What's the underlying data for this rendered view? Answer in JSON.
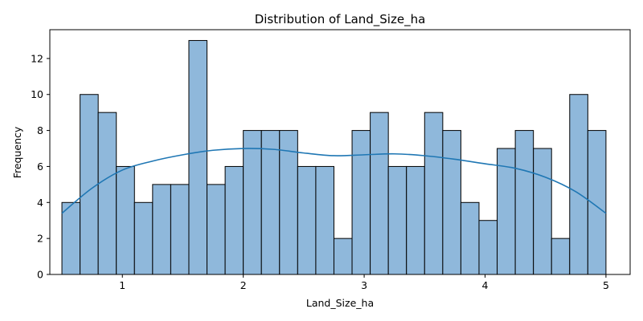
{
  "chart_data": {
    "type": "bar",
    "title": "Distribution of Land_Size_ha",
    "xlabel": "Land_Size_ha",
    "ylabel": "Frequency",
    "xlim": [
      0.4,
      5.2
    ],
    "ylim": [
      0,
      13.6
    ],
    "bin_start": 0.5,
    "bin_width": 0.15,
    "values": [
      4,
      10,
      9,
      6,
      4,
      5,
      5,
      13,
      5,
      6,
      8,
      8,
      8,
      6,
      6,
      2,
      8,
      9,
      6,
      6,
      9,
      8,
      4,
      3,
      7,
      8,
      7,
      2,
      10,
      8
    ],
    "x_ticks": [
      1,
      2,
      3,
      4,
      5
    ],
    "x_tick_labels": [
      "1",
      "2",
      "3",
      "4",
      "5"
    ],
    "y_ticks": [
      0,
      2,
      4,
      6,
      8,
      10,
      12
    ],
    "y_tick_labels": [
      "0",
      "2",
      "4",
      "6",
      "8",
      "10",
      "12"
    ],
    "kde": {
      "x": [
        0.5,
        0.75,
        1.0,
        1.25,
        1.5,
        1.75,
        2.0,
        2.25,
        2.5,
        2.75,
        3.0,
        3.25,
        3.5,
        3.75,
        4.0,
        4.25,
        4.5,
        4.75,
        5.0
      ],
      "y": [
        3.4,
        4.8,
        5.8,
        6.3,
        6.65,
        6.9,
        7.0,
        6.95,
        6.75,
        6.6,
        6.65,
        6.7,
        6.6,
        6.4,
        6.15,
        5.9,
        5.4,
        4.6,
        3.4
      ]
    },
    "colors": {
      "bar_fill": "#8fb8db",
      "bar_stroke": "#000000",
      "kde_line": "#1f77b4"
    },
    "grid": false,
    "legend": "none"
  }
}
